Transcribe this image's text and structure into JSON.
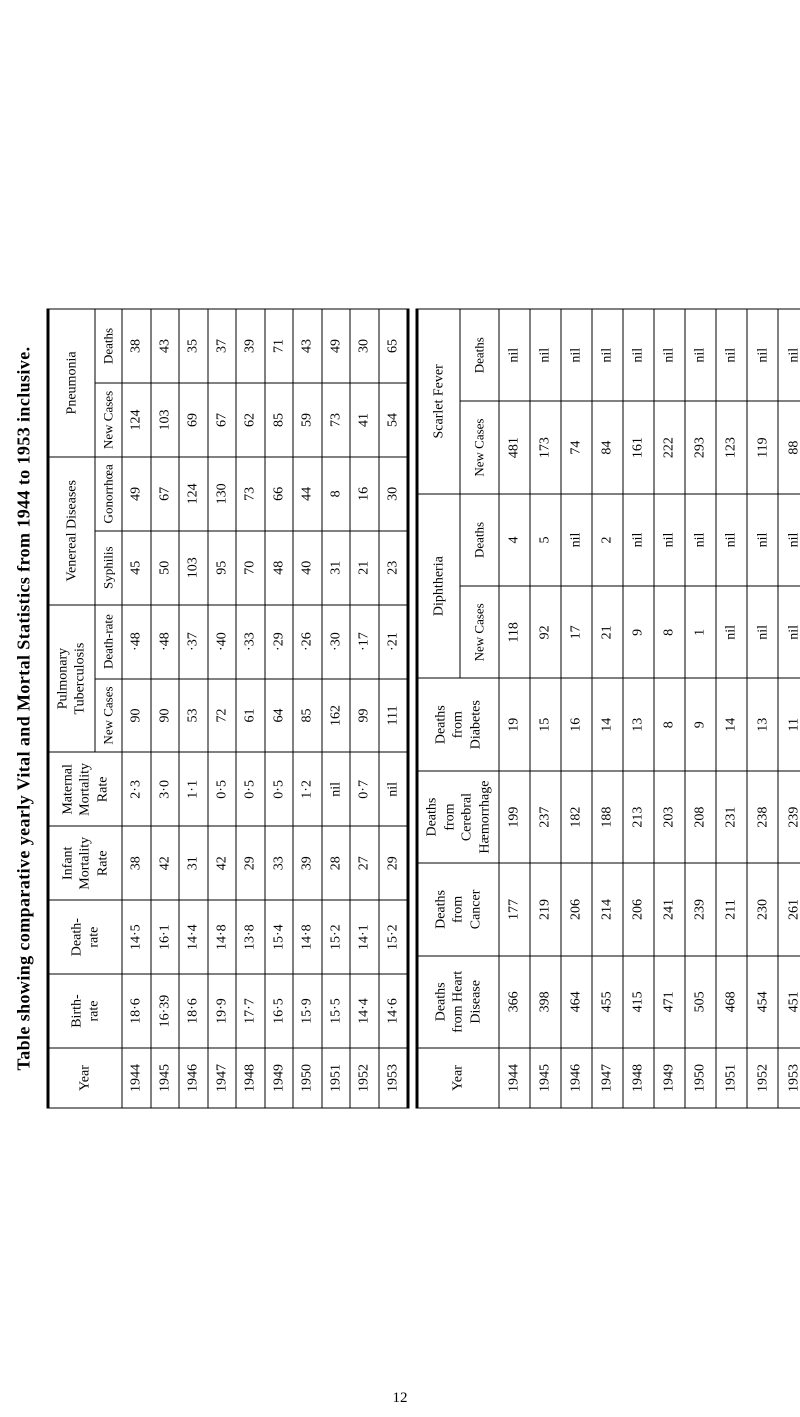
{
  "title": "Table showing comparative yearly Vital and Mortal Statistics from 1944 to 1953 inclusive.",
  "page_number": "12",
  "years": [
    "1944",
    "1945",
    "1946",
    "1947",
    "1948",
    "1949",
    "1950",
    "1951",
    "1952",
    "1953"
  ],
  "top": {
    "groups": {
      "birth_rate": [
        "18·6",
        "16·39",
        "18·6",
        "19·9",
        "17·7",
        "16·5",
        "15·9",
        "15·5",
        "14·4",
        "14·6"
      ],
      "death_rate": [
        "14·5",
        "16·1",
        "14·4",
        "14·8",
        "13·8",
        "15·4",
        "14·8",
        "15·2",
        "14·1",
        "15·2"
      ],
      "infant_mortality": [
        "38",
        "42",
        "31",
        "42",
        "29",
        "33",
        "39",
        "28",
        "27",
        "29"
      ],
      "maternal_mortality": [
        "2·3",
        "3·0",
        "1·1",
        "0·5",
        "0·5",
        "0·5",
        "1·2",
        "nil",
        "0·7",
        "nil"
      ],
      "pulmonary_tb_cases": [
        "90",
        "90",
        "53",
        "72",
        "61",
        "64",
        "85",
        "162",
        "99",
        "111"
      ],
      "pulmonary_tb_death_rate": [
        "·48",
        "·48",
        "·37",
        "·40",
        "·33",
        "·29",
        "·26",
        "·30",
        "·17",
        "·21"
      ],
      "syphilis": [
        "45",
        "50",
        "103",
        "95",
        "70",
        "48",
        "40",
        "31",
        "21",
        "23"
      ],
      "gonorrhoea": [
        "49",
        "67",
        "124",
        "130",
        "73",
        "66",
        "44",
        "8",
        "16",
        "30"
      ],
      "pneumonia_cases": [
        "124",
        "103",
        "69",
        "67",
        "62",
        "85",
        "59",
        "73",
        "41",
        "54"
      ],
      "pneumonia_deaths": [
        "38",
        "43",
        "35",
        "37",
        "39",
        "71",
        "43",
        "49",
        "30",
        "65"
      ]
    },
    "headers": {
      "year": "Year",
      "birth_rate": "Birth-\nrate",
      "death_rate": "Death-\nrate",
      "infant": "Infant\nMortality\nRate",
      "maternal": "Maternal\nMortality\nRate",
      "pulmonary": "Pulmonary\nTuberculosis",
      "venereal": "Venereal Diseases",
      "pneumonia": "Pneumonia",
      "new_cases": "New Cases",
      "death_rate_sub": "Death-rate",
      "syphilis": "Syphilis",
      "gonorrhoea": "Gonorrhœa",
      "deaths": "Deaths"
    }
  },
  "bottom": {
    "groups": {
      "heart": [
        "366",
        "398",
        "464",
        "455",
        "415",
        "471",
        "505",
        "468",
        "454",
        "451"
      ],
      "cancer": [
        "177",
        "219",
        "206",
        "214",
        "206",
        "241",
        "239",
        "211",
        "230",
        "261"
      ],
      "cerebral": [
        "199",
        "237",
        "182",
        "188",
        "213",
        "203",
        "208",
        "231",
        "238",
        "239"
      ],
      "diabetes": [
        "19",
        "15",
        "16",
        "14",
        "13",
        "8",
        "9",
        "14",
        "13",
        "11"
      ],
      "diphtheria_cases": [
        "118",
        "92",
        "17",
        "21",
        "9",
        "8",
        "1",
        "nil",
        "nil",
        "nil"
      ],
      "diphtheria_deaths": [
        "4",
        "5",
        "nil",
        "2",
        "nil",
        "nil",
        "nil",
        "nil",
        "nil",
        "nil"
      ],
      "scarlet_cases": [
        "481",
        "173",
        "74",
        "84",
        "161",
        "222",
        "293",
        "123",
        "119",
        "88"
      ],
      "scarlet_deaths": [
        "nil",
        "nil",
        "nil",
        "nil",
        "nil",
        "nil",
        "nil",
        "nil",
        "nil",
        "nil"
      ]
    },
    "headers": {
      "year": "Year",
      "heart": "Deaths\nfrom Heart\nDisease",
      "cancer": "Deaths\nfrom\nCancer",
      "cerebral": "Deaths\nfrom\nCerebral\nHæmorrhage",
      "diabetes": "Deaths\nfrom\nDiabetes",
      "diphtheria": "Diphtheria",
      "scarlet": "Scarlet Fever",
      "new_cases": "New Cases",
      "deaths": "Deaths"
    }
  }
}
